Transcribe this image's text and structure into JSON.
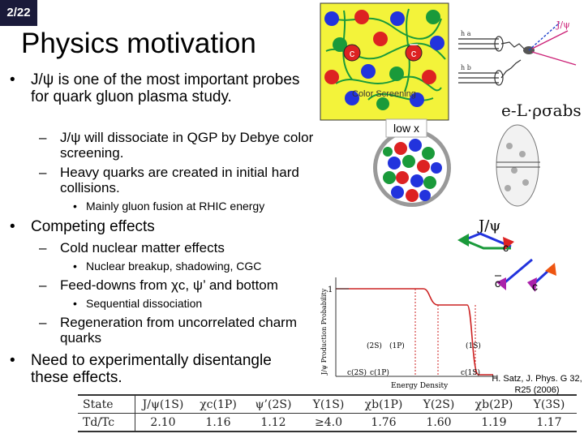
{
  "slide_number": "2/22",
  "title": "Physics motivation",
  "bullets": {
    "b1": "J/ψ is one of the most important probes for quark gluon plasma study.",
    "b1_1": "J/ψ will dissociate in QGP by Debye color screening.",
    "b1_2": "Heavy quarks are created in initial hard collisions.",
    "b1_2_1": "Mainly gluon fusion at RHIC energy",
    "b2": "Competing effects",
    "b2_1": "Cold nuclear matter effects",
    "b2_1_1": "Nuclear breakup, shadowing, CGC",
    "b2_2": "Feed-downs from χc, ψ’ and bottom",
    "b2_2_1": "Sequential dissociation",
    "b2_3": "Regeneration from uncorrelated charm quarks",
    "b3": "Need to experimentally disentangle these effects."
  },
  "figures": {
    "color_screening": {
      "caption": "Color Screening",
      "quark": "c",
      "antiquark": "c"
    },
    "feynman": {
      "jpsi": "J/ψ",
      "h_a": "h a",
      "h_b": "h b"
    },
    "absorption": {
      "formula": "e-L·ρσabs"
    },
    "low_x": {
      "label": "low x"
    },
    "regeneration": {
      "jpsi": "J/ψ",
      "c1": "c",
      "cbar": "c",
      "c2": "c"
    },
    "sequential": {
      "ylabel": "J/ψ Production Probability",
      "xlabel": "Energy Density",
      "one": "1",
      "upper_labels": [
        "(2S)",
        "(1P)",
        "(1S)"
      ],
      "lower_labels": [
        "c(2S)",
        "c(1P)",
        "c(1S)"
      ]
    },
    "source": "H. Satz, J. Phys. G 32, R25 (2006)"
  },
  "table": {
    "header": [
      "State",
      "J/ψ(1S)",
      "χc(1P)",
      "ψ’(2S)",
      "Υ(1S)",
      "χb(1P)",
      "Υ(2S)",
      "χb(2P)",
      "Υ(3S)"
    ],
    "row": [
      "Td/Tc",
      "2.10",
      "1.16",
      "1.12",
      "≥4.0",
      "1.76",
      "1.60",
      "1.19",
      "1.17"
    ]
  }
}
